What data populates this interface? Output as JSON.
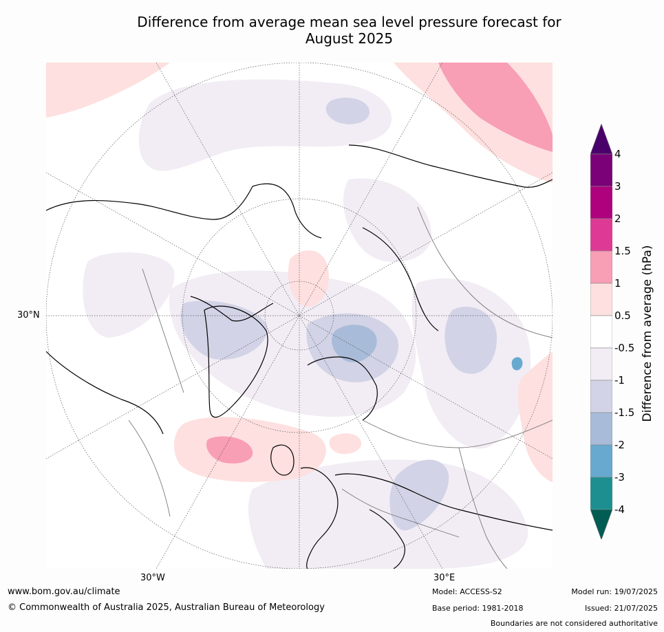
{
  "title_line1": "Difference from average mean sea level pressure forecast for",
  "title_line2": "August 2025",
  "map": {
    "projection": "north polar stereographic",
    "lat_label": "30°N",
    "lon_labels": [
      "30°W",
      "30°E"
    ],
    "colors": {
      "pos_0_5_1": "#fde0df",
      "pos_1_1_5": "#f89eb5",
      "pos_1_5_2": "#de3a95",
      "neg_0_5_1": "#f2ecf4",
      "neg_1_1_5": "#d2d3e6",
      "neg_1_5_2": "#a8bbd8",
      "neg_2_3": "#68a9cf"
    }
  },
  "colorbar": {
    "title": "Difference from average (hPa)",
    "ticks": [
      "4",
      "3",
      "2",
      "1.5",
      "1",
      "0.5",
      "-0.5",
      "-1",
      "-1.5",
      "-2",
      "-3",
      "-4"
    ],
    "colors": [
      "#015d53",
      "#1d8f91",
      "#68a9cf",
      "#a8bbd8",
      "#d2d3e6",
      "#f2ecf4",
      "#ffffff",
      "#fde0df",
      "#f89eb5",
      "#de3a95",
      "#ae017e",
      "#7a0177",
      "#4a006a"
    ]
  },
  "footer": {
    "website": "www.bom.gov.au/climate",
    "copyright": "© Commonwealth of Australia 2025, Australian Bureau of Meteorology",
    "model": "Model: ACCESS-S2",
    "base_period": "Base period: 1981-2018",
    "model_run": "Model run: 19/07/2025",
    "issued": "Issued: 21/07/2025",
    "disclaimer": "Boundaries are not considered authoritative"
  }
}
